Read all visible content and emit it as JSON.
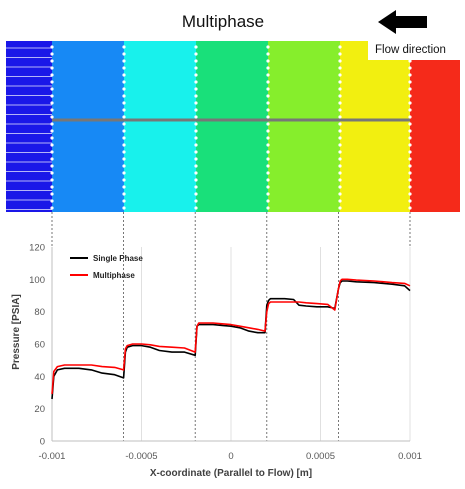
{
  "title": "Multiphase",
  "flow_label": "Flow direction",
  "contour": {
    "band_colors": [
      "#1a17e8",
      "#1789f5",
      "#18f1ec",
      "#19e07a",
      "#86ee2c",
      "#f2ef10",
      "#f52a1a"
    ]
  },
  "chart_data": {
    "type": "line",
    "xlabel": "X-coordinate (Parallel to Flow) [m]",
    "ylabel": "Pressure [PSIA]",
    "xlim": [
      -0.001,
      0.001
    ],
    "ylim": [
      0,
      120
    ],
    "x_ticks": [
      -0.001,
      -0.0005,
      0,
      0.0005,
      0.001
    ],
    "x_tick_labels": [
      "-0.001",
      "-0.0005",
      "0",
      "0.0005",
      "0.001"
    ],
    "y_ticks": [
      0,
      20,
      40,
      60,
      80,
      100,
      120
    ],
    "y_tick_labels": [
      "0",
      "20",
      "40",
      "60",
      "80",
      "100",
      "120"
    ],
    "grid": "vertical",
    "legend_position": "top-left",
    "series": [
      {
        "name": "Single Phase",
        "color": "#000000",
        "x": [
          -0.001,
          -0.00099,
          -0.00097,
          -0.00093,
          -0.00085,
          -0.00078,
          -0.00072,
          -0.00065,
          -0.0006,
          -0.00059,
          -0.00058,
          -0.00055,
          -0.0005,
          -0.00045,
          -0.0004,
          -0.00033,
          -0.00026,
          -0.0002,
          -0.00019,
          -0.00018,
          -0.00015,
          -0.0001,
          -5e-05,
          0,
          5e-05,
          0.0001,
          0.00015,
          0.00019,
          0.0002,
          0.00021,
          0.00022,
          0.00025,
          0.0003,
          0.00035,
          0.00038,
          0.00042,
          0.00048,
          0.00054,
          0.00058,
          0.0006,
          0.00061,
          0.00062,
          0.00065,
          0.0007,
          0.0008,
          0.0009,
          0.00097,
          0.001
        ],
        "values": [
          26,
          40,
          44,
          45,
          45,
          44,
          42,
          41,
          39,
          55,
          58,
          59,
          59,
          58,
          56,
          55,
          55,
          53,
          71,
          72,
          72,
          72,
          71.5,
          71,
          70,
          68,
          67,
          67,
          84,
          87,
          88,
          88,
          88,
          87.5,
          84,
          83.5,
          83,
          83,
          82,
          94,
          98,
          99,
          99,
          98.5,
          98,
          97,
          96,
          93
        ]
      },
      {
        "name": "Multiphase",
        "color": "#ff0000",
        "x": [
          -0.001,
          -0.00099,
          -0.00097,
          -0.00093,
          -0.00085,
          -0.00078,
          -0.00072,
          -0.00065,
          -0.0006,
          -0.00059,
          -0.00058,
          -0.00055,
          -0.0005,
          -0.00045,
          -0.0004,
          -0.00033,
          -0.00026,
          -0.0002,
          -0.00019,
          -0.00018,
          -0.00015,
          -0.0001,
          -5e-05,
          0,
          5e-05,
          0.0001,
          0.00015,
          0.00019,
          0.0002,
          0.00021,
          0.00022,
          0.00025,
          0.0003,
          0.00035,
          0.00038,
          0.00042,
          0.00048,
          0.00054,
          0.00058,
          0.0006,
          0.00061,
          0.00062,
          0.00065,
          0.0007,
          0.0008,
          0.0009,
          0.00097,
          0.001
        ],
        "values": [
          29,
          43,
          46,
          47,
          47,
          47,
          46,
          45.5,
          44,
          57,
          59,
          60,
          60,
          59.5,
          58.5,
          58,
          57.5,
          55,
          71,
          73,
          73,
          73,
          72.5,
          72,
          71,
          70,
          69,
          68,
          80,
          85,
          86,
          86,
          86,
          86,
          86,
          85.5,
          85,
          84.5,
          81,
          94,
          99,
          100,
          100,
          99.5,
          99,
          98,
          97.5,
          96
        ]
      }
    ]
  }
}
